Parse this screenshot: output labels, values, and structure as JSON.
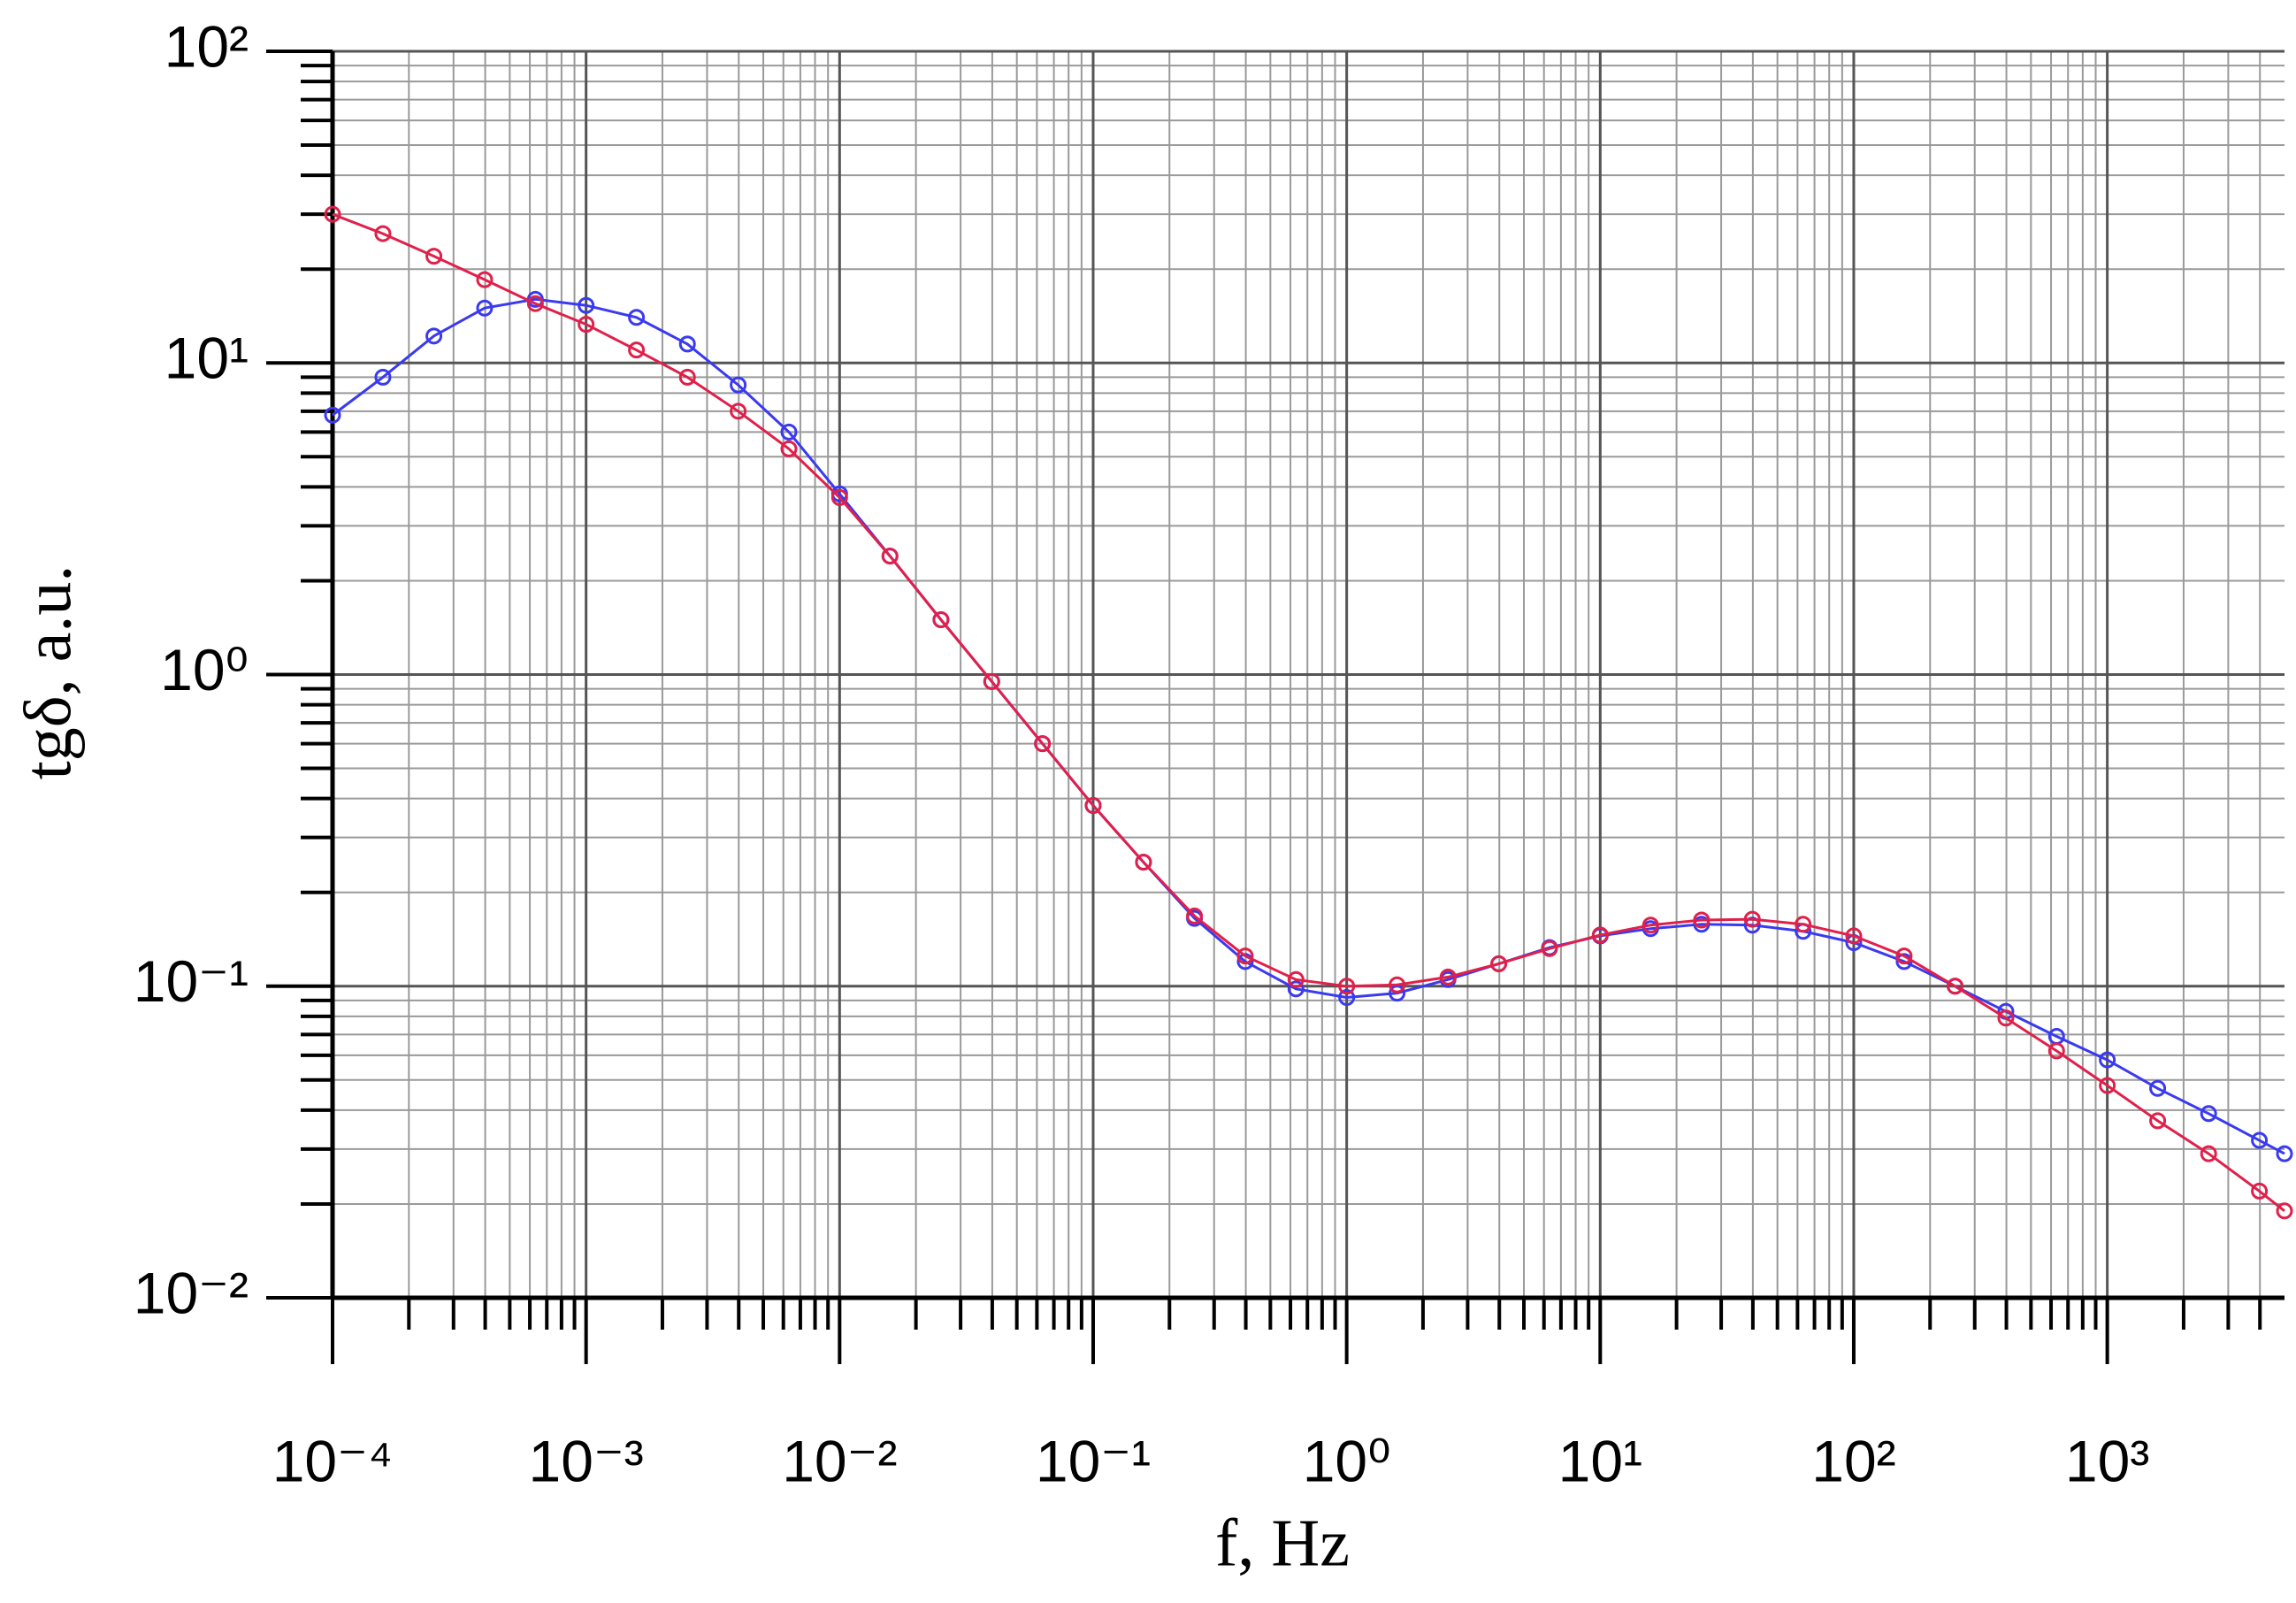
{
  "chart_data": {
    "type": "line",
    "xlabel": "f, Hz",
    "ylabel": "tgδ, a.u.",
    "xscale": "log",
    "yscale": "log",
    "grid": true,
    "markers": "circle",
    "xlim": [
      0.0001,
      5000
    ],
    "ylim": [
      0.01,
      100
    ],
    "xticks": [
      {
        "value": 0.0001,
        "label": "10⁻⁴"
      },
      {
        "value": 0.001,
        "label": "10⁻³"
      },
      {
        "value": 0.01,
        "label": "10⁻²"
      },
      {
        "value": 0.1,
        "label": "10⁻¹"
      },
      {
        "value": 1,
        "label": "10⁰"
      },
      {
        "value": 10,
        "label": "10¹"
      },
      {
        "value": 100,
        "label": "10²"
      },
      {
        "value": 1000,
        "label": "10³"
      }
    ],
    "yticks": [
      {
        "value": 0.01,
        "label": "10⁻²"
      },
      {
        "value": 0.1,
        "label": "10⁻¹"
      },
      {
        "value": 1,
        "label": "10⁰"
      },
      {
        "value": 10,
        "label": "10¹"
      },
      {
        "value": 100,
        "label": "10²"
      }
    ],
    "x": [
      0.0001,
      0.000158,
      0.000251,
      0.000398,
      0.000631,
      0.001,
      0.00158,
      0.00251,
      0.00398,
      0.00631,
      0.01,
      0.0158,
      0.0251,
      0.0398,
      0.0631,
      0.1,
      0.158,
      0.251,
      0.398,
      0.631,
      1,
      1.58,
      2.51,
      3.98,
      6.31,
      10,
      15.8,
      25.1,
      39.8,
      63.1,
      100,
      158,
      251,
      398,
      631,
      1000,
      1580,
      2510,
      3980,
      5000
    ],
    "series": [
      {
        "name": null,
        "color": "#3a3af0",
        "values": [
          6.8,
          9,
          12.2,
          15,
          16,
          15.3,
          14,
          11.5,
          8.5,
          6,
          3.8,
          2.4,
          1.5,
          0.95,
          0.6,
          0.38,
          0.25,
          0.165,
          0.12,
          0.098,
          0.092,
          0.095,
          0.105,
          0.118,
          0.133,
          0.145,
          0.153,
          0.158,
          0.157,
          0.15,
          0.138,
          0.12,
          0.1,
          0.083,
          0.069,
          0.058,
          0.047,
          0.039,
          0.032,
          0.029
        ]
      },
      {
        "name": null,
        "color": "#e0204a",
        "values": [
          30,
          26,
          22,
          18.5,
          15.5,
          13.3,
          11,
          9,
          7,
          5.3,
          3.7,
          2.4,
          1.5,
          0.95,
          0.6,
          0.38,
          0.25,
          0.168,
          0.125,
          0.105,
          0.1,
          0.101,
          0.107,
          0.118,
          0.132,
          0.146,
          0.157,
          0.163,
          0.164,
          0.158,
          0.145,
          0.125,
          0.1,
          0.079,
          0.062,
          0.048,
          0.037,
          0.029,
          0.022,
          0.019
        ]
      }
    ]
  }
}
